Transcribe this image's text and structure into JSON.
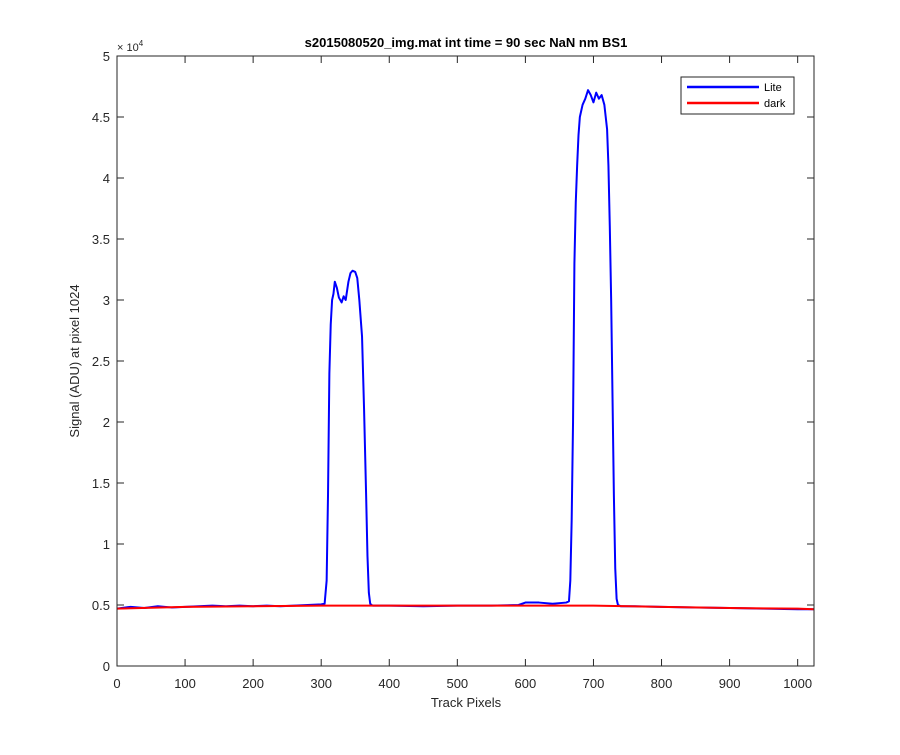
{
  "chart_data": {
    "type": "line",
    "title": "s2015080520_img.mat int time = 90 sec  NaN nm BS1",
    "xlabel": "Track Pixels",
    "ylabel": "Signal (ADU) at pixel 1024",
    "xlim": [
      0,
      1024
    ],
    "ylim": [
      0,
      50000
    ],
    "xticks": [
      0,
      100,
      200,
      300,
      400,
      500,
      600,
      700,
      800,
      900,
      1000
    ],
    "xtick_labels": [
      "0",
      "100",
      "200",
      "300",
      "400",
      "500",
      "600",
      "700",
      "800",
      "900",
      "1000"
    ],
    "yticks": [
      0,
      5000,
      10000,
      15000,
      20000,
      25000,
      30000,
      35000,
      40000,
      45000,
      50000
    ],
    "ytick_labels": [
      "0",
      "0.5",
      "1",
      "1.5",
      "2",
      "2.5",
      "3",
      "3.5",
      "4",
      "4.5",
      "5"
    ],
    "y_exponent": {
      "base": "× 10",
      "power": "4"
    },
    "grid": false,
    "legend_position": "top-right",
    "series": [
      {
        "name": "Lite",
        "color": "#0000ff",
        "x": [
          0,
          20,
          40,
          60,
          80,
          100,
          120,
          140,
          160,
          180,
          200,
          220,
          240,
          260,
          280,
          300,
          305,
          308,
          310,
          312,
          314,
          316,
          318,
          320,
          323,
          326,
          330,
          333,
          336,
          340,
          343,
          346,
          350,
          353,
          356,
          360,
          363,
          366,
          368,
          370,
          372,
          374,
          376,
          380,
          400,
          450,
          500,
          550,
          590,
          600,
          620,
          640,
          660,
          664,
          666,
          668,
          670,
          672,
          674,
          676,
          678,
          680,
          684,
          688,
          692,
          696,
          700,
          704,
          708,
          712,
          716,
          720,
          722,
          724,
          726,
          728,
          730,
          732,
          734,
          736,
          740,
          760,
          800,
          850,
          900,
          950,
          1000,
          1024
        ],
        "y": [
          4700,
          4850,
          4750,
          4900,
          4800,
          4850,
          4900,
          4950,
          4900,
          4950,
          4900,
          4950,
          4900,
          4950,
          5000,
          5050,
          5100,
          7000,
          14000,
          24000,
          28000,
          30000,
          30500,
          31500,
          31000,
          30200,
          29800,
          30300,
          30000,
          31500,
          32200,
          32400,
          32300,
          31800,
          30000,
          27000,
          21000,
          14000,
          9000,
          6000,
          5100,
          5000,
          4950,
          4950,
          4950,
          4900,
          4950,
          4950,
          5000,
          5200,
          5200,
          5100,
          5200,
          5300,
          7000,
          12000,
          20000,
          33000,
          38000,
          41000,
          43500,
          45000,
          46000,
          46500,
          47200,
          46800,
          46200,
          47000,
          46500,
          46800,
          46000,
          44000,
          41000,
          36000,
          30000,
          22000,
          14000,
          8000,
          5500,
          5000,
          4900,
          4900,
          4850,
          4800,
          4750,
          4700,
          4650,
          4650
        ]
      },
      {
        "name": "dark",
        "color": "#ff0000",
        "x": [
          0,
          100,
          200,
          300,
          400,
          500,
          600,
          700,
          800,
          900,
          1000,
          1024
        ],
        "y": [
          4700,
          4850,
          4900,
          4950,
          4950,
          4950,
          4950,
          4950,
          4850,
          4750,
          4700,
          4650
        ]
      }
    ]
  }
}
